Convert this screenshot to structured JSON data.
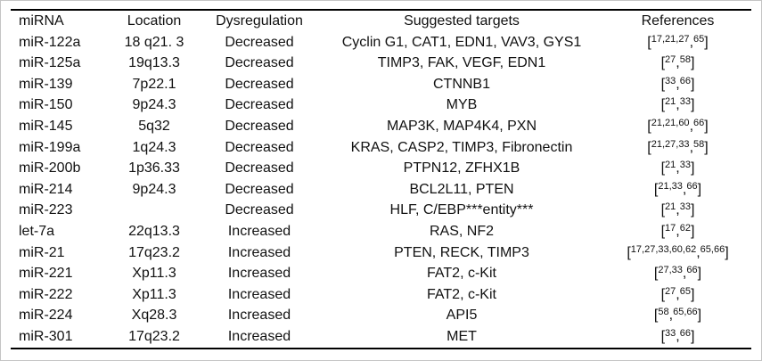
{
  "figure": {
    "kind": "paper-table",
    "colors": {
      "background": "#ffffff",
      "text": "#111111",
      "rule": "#000000",
      "outer_border": "#c4c4c4"
    }
  },
  "table": {
    "headers": {
      "mirna": "miRNA",
      "location": "Location",
      "dysregulation": "Dysregulation",
      "targets": "Suggested targets",
      "references": "References"
    },
    "reference_format": {
      "open_bracket": "[",
      "close_bracket": "]",
      "group_separator": ","
    },
    "rows": [
      {
        "mirna": "miR-122a",
        "location": "18 q21. 3",
        "dysregulation": "Decreased",
        "targets": "Cyclin G1, CAT1, EDN1, VAV3, GYS1",
        "references": [
          "17,21,27",
          "65"
        ]
      },
      {
        "mirna": "miR-125a",
        "location": "19q13.3",
        "dysregulation": "Decreased",
        "targets": "TIMP3, FAK, VEGF, EDN1",
        "references": [
          "27",
          "58"
        ]
      },
      {
        "mirna": "miR-139",
        "location": "7p22.1",
        "dysregulation": "Decreased",
        "targets": "CTNNB1",
        "references": [
          "33",
          "66"
        ]
      },
      {
        "mirna": "miR-150",
        "location": "9p24.3",
        "dysregulation": "Decreased",
        "targets": "MYB",
        "references": [
          "21",
          "33"
        ]
      },
      {
        "mirna": "miR-145",
        "location": "5q32",
        "dysregulation": "Decreased",
        "targets": "MAP3K, MAP4K4, PXN",
        "references": [
          "21,21,60",
          "66"
        ]
      },
      {
        "mirna": "miR-199a",
        "location": "1q24.3",
        "dysregulation": "Decreased",
        "targets": "KRAS, CASP2, TIMP3, Fibronectin",
        "references": [
          "21,27,33",
          "58"
        ]
      },
      {
        "mirna": "miR-200b",
        "location": "1p36.33",
        "dysregulation": "Decreased",
        "targets": "PTPN12, ZFHX1B",
        "references": [
          "21",
          "33"
        ]
      },
      {
        "mirna": "miR-214",
        "location": "9p24.3",
        "dysregulation": "Decreased",
        "targets": "BCL2L11, PTEN",
        "references": [
          "21,33",
          "66"
        ]
      },
      {
        "mirna": "miR-223",
        "location": "",
        "dysregulation": "Decreased",
        "targets": "HLF, C/EBP***entity***",
        "references": [
          "21",
          "33"
        ]
      },
      {
        "mirna": "let-7a",
        "location": "22q13.3",
        "dysregulation": "Increased",
        "targets": "RAS, NF2",
        "references": [
          "17",
          "62"
        ]
      },
      {
        "mirna": "miR-21",
        "location": "17q23.2",
        "dysregulation": "Increased",
        "targets": "PTEN, RECK, TIMP3",
        "references": [
          "17,27,33,60,62",
          "65,66"
        ]
      },
      {
        "mirna": "miR-221",
        "location": "Xp11.3",
        "dysregulation": "Increased",
        "targets": "FAT2, c-Kit",
        "references": [
          "27,33",
          "66"
        ]
      },
      {
        "mirna": "miR-222",
        "location": "Xp11.3",
        "dysregulation": "Increased",
        "targets": "FAT2, c-Kit",
        "references": [
          "27",
          "65"
        ]
      },
      {
        "mirna": "miR-224",
        "location": "Xq28.3",
        "dysregulation": "Increased",
        "targets": "API5",
        "references": [
          "58",
          "65,66"
        ]
      },
      {
        "mirna": "miR-301",
        "location": "17q23.2",
        "dysregulation": "Increased",
        "targets": "MET",
        "references": [
          "33",
          "66"
        ]
      }
    ]
  }
}
